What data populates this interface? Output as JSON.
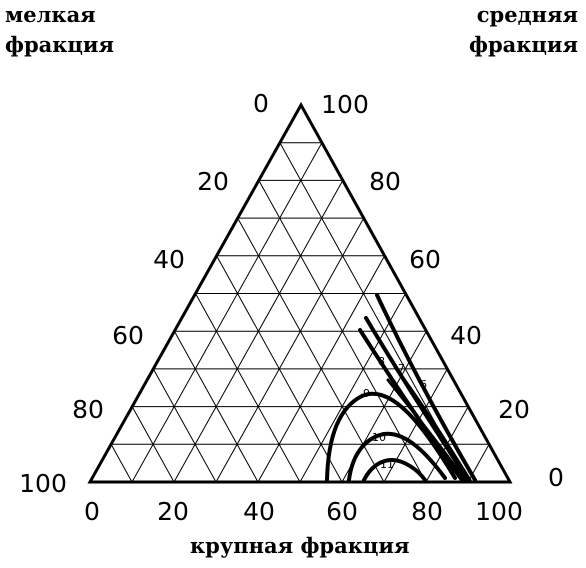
{
  "corner_labels": {
    "fine": [
      "мелкая",
      "фракция"
    ],
    "medium": [
      "средняя",
      "фракция"
    ],
    "coarse": "крупная фракция"
  },
  "axis_ticks": {
    "fine": [
      "0",
      "20",
      "40",
      "60",
      "80",
      "100"
    ],
    "medium": [
      "100",
      "80",
      "60",
      "40",
      "20",
      "0"
    ],
    "coarse": [
      "0",
      "20",
      "40",
      "60",
      "80",
      "100"
    ]
  },
  "curve_labels": [
    "6",
    "7",
    "8",
    "9",
    "10",
    "11"
  ],
  "grid_divisions": 10,
  "colors": {
    "ink": "#000000",
    "paper": "#ffffff"
  }
}
